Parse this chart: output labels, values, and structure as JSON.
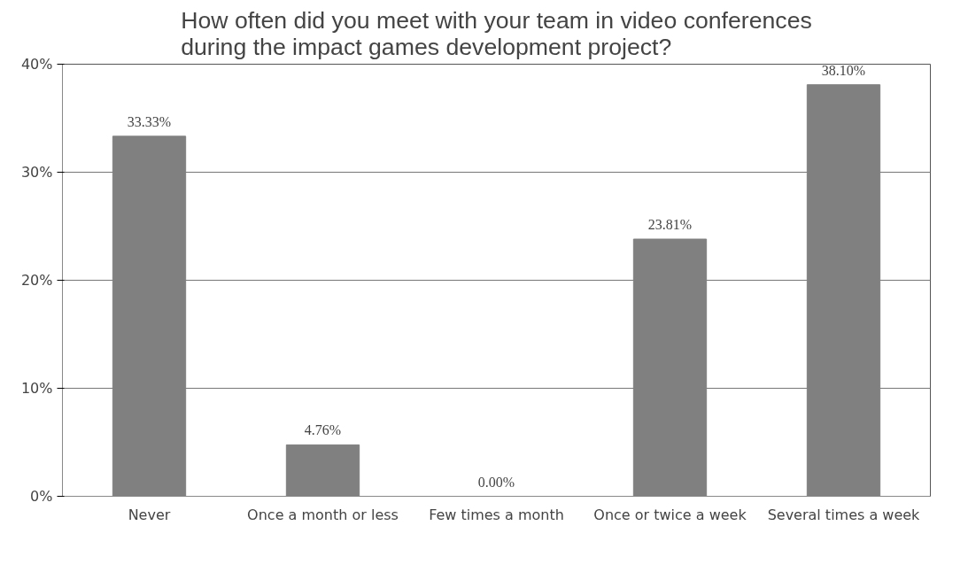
{
  "chart_data": {
    "type": "bar",
    "title": "How often did you meet with your team in video conferences\nduring the impact games development project?",
    "categories": [
      "Never",
      "Once a month or less",
      "Few times a month",
      "Once or twice a week",
      "Several times a week"
    ],
    "values": [
      33.33,
      4.76,
      0.0,
      23.81,
      38.1
    ],
    "value_labels": [
      "33.33%",
      "4.76%",
      "0.00%",
      "23.81%",
      "38.10%"
    ],
    "color": "#808080",
    "ylim": [
      0,
      40
    ],
    "yticks": [
      {
        "value": 0,
        "label": "0%"
      },
      {
        "value": 10,
        "label": "10%"
      },
      {
        "value": 20,
        "label": "20%"
      },
      {
        "value": 30,
        "label": "30%"
      },
      {
        "value": 40,
        "label": "40%"
      }
    ],
    "grid": "y"
  }
}
